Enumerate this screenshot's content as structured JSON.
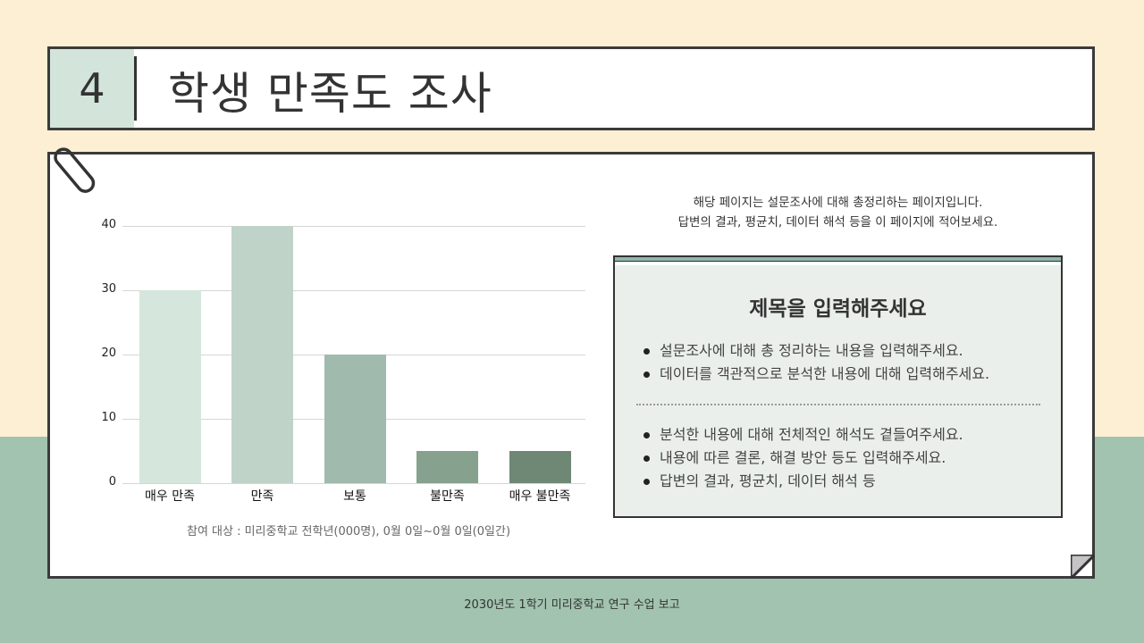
{
  "header": {
    "number": "4",
    "title": "학생 만족도 조사"
  },
  "chart_data": {
    "type": "bar",
    "title": "",
    "xlabel": "",
    "ylabel": "",
    "categories": [
      "매우 만족",
      "만족",
      "보통",
      "불만족",
      "매우 불만족"
    ],
    "values": [
      30,
      40,
      20,
      5,
      5
    ],
    "bar_colors": [
      "#d5e6dc",
      "#bfd3c8",
      "#a0baad",
      "#86a18d",
      "#6f8775"
    ],
    "yticks": [
      0,
      10,
      20,
      30,
      40
    ],
    "ylim": [
      0,
      40
    ],
    "grid": true,
    "legend": "none",
    "note": "참여 대상 : 미리중학교 전학년(000명), 0월 0일~0월 0일(0일간)"
  },
  "description": {
    "line1": "해당 페이지는 설문조사에 대해 총정리하는 페이지입니다.",
    "line2": "답변의 결과, 평균치, 데이터 해석 등을 이 페이지에 적어보세요."
  },
  "summary": {
    "title": "제목을 입력해주세요",
    "group1": [
      "설문조사에 대해 총 정리하는 내용을 입력해주세요.",
      "데이터를 객관적으로 분석한 내용에 대해 입력해주세요."
    ],
    "group2": [
      "분석한 내용에 대해 전체적인 해석도 곁들여주세요.",
      "내용에 따른 결론, 해결 방안 등도 입력해주세요.",
      "답변의 결과, 평균치, 데이터 해석 등"
    ]
  },
  "footer": {
    "text": "2030년도 1학기 미리중학교 연구 수업 보고"
  },
  "colors": {
    "background_top": "#fdefd4",
    "background_bottom": "#a2c3af",
    "number_box": "#d3e5db",
    "summary_box": "#eaefec",
    "summary_accent": "#8fb7ac",
    "border": "#3b3b3b"
  }
}
